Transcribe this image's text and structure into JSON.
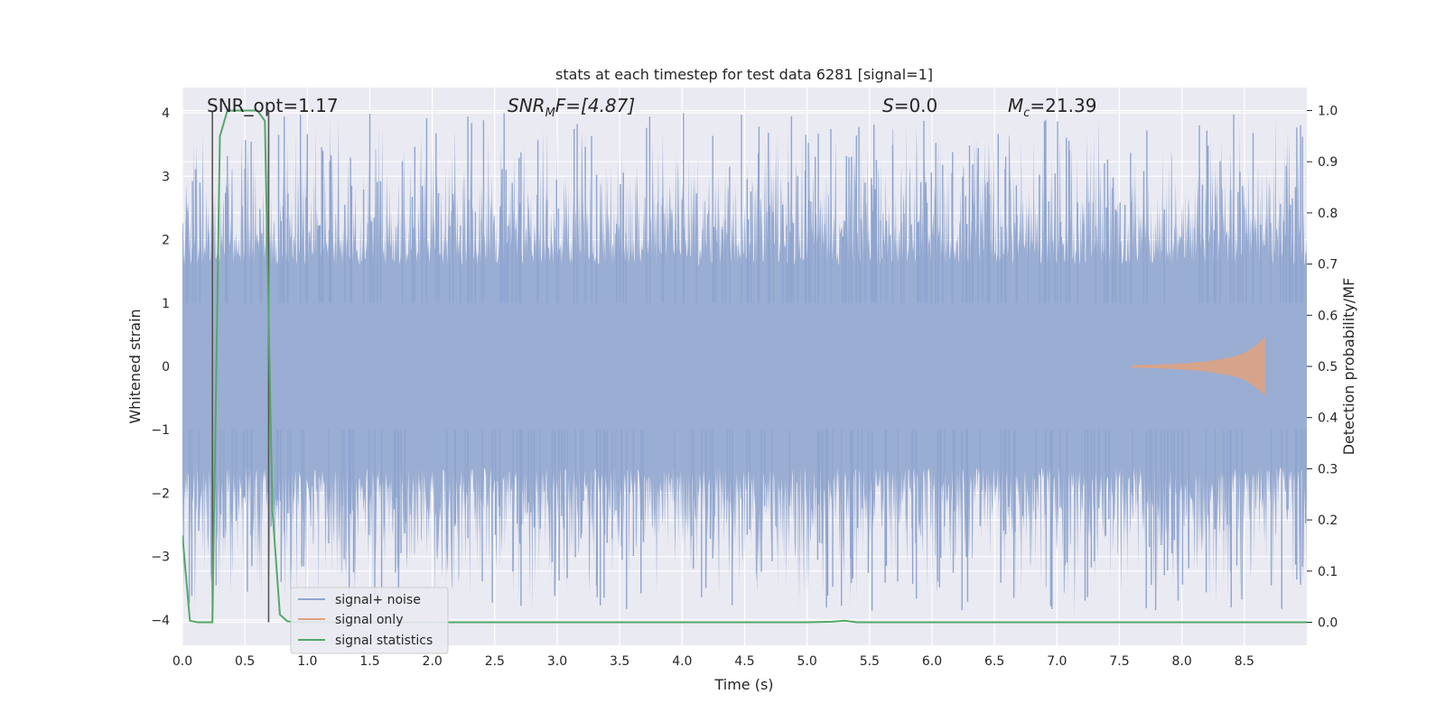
{
  "chart_data": {
    "type": "line",
    "title": "stats at each timestep for test data 6281 [signal=1]",
    "xlabel": "Time (s)",
    "ylabel_left": "Whitened strain",
    "ylabel_right": "Detection probability/MF",
    "xlim": [
      0.0,
      9.0
    ],
    "ylim_left": [
      -4.4,
      4.4
    ],
    "ylim_right": [
      -0.045,
      1.045
    ],
    "x_ticks": [
      "0.0",
      "0.5",
      "1.0",
      "1.5",
      "2.0",
      "2.5",
      "3.0",
      "3.5",
      "4.0",
      "4.5",
      "5.0",
      "5.5",
      "6.0",
      "6.5",
      "7.0",
      "7.5",
      "8.0",
      "8.5"
    ],
    "y_ticks_left": [
      "−4",
      "−3",
      "−2",
      "−1",
      "0",
      "1",
      "2",
      "3",
      "4"
    ],
    "y_ticks_right": [
      "0.0",
      "0.1",
      "0.2",
      "0.3",
      "0.4",
      "0.5",
      "0.6",
      "0.7",
      "0.8",
      "0.9",
      "1.0"
    ],
    "grid": true,
    "legend_position": "lower-left",
    "annotations": {
      "snr_opt": "SNR_opt=1.17",
      "snr_mf": "SNR",
      "snr_mf_sub": "M",
      "snr_mf_rest": "F=[4.87]",
      "s": "S",
      "s_rest": "=0.0",
      "mc": "M",
      "mc_sub": "c",
      "mc_rest": "=21.39"
    },
    "vertical_lines": [
      0.24,
      0.69
    ],
    "series": [
      {
        "name": "signal+ noise",
        "color": "#8fa5cf",
        "x_range": [
          0.0,
          9.0
        ],
        "band_envelope": 1.6,
        "approx_peak_range": [
          -4.0,
          4.0
        ]
      },
      {
        "name": "signal only",
        "color": "#e0a27f",
        "x": [
          7.6,
          7.8,
          8.0,
          8.2,
          8.4,
          8.5,
          8.6,
          8.66
        ],
        "amplitude": [
          0.01,
          0.02,
          0.04,
          0.07,
          0.14,
          0.2,
          0.33,
          0.45
        ]
      },
      {
        "name": "signal statistics",
        "color": "#55a868",
        "x": [
          0.0,
          0.06,
          0.12,
          0.18,
          0.24,
          0.3,
          0.36,
          0.42,
          0.48,
          0.54,
          0.6,
          0.66,
          0.72,
          0.78,
          0.84,
          0.9,
          1.2,
          2.0,
          3.0,
          4.0,
          5.0,
          5.2,
          5.3,
          5.4,
          6.0,
          7.0,
          8.0,
          9.0
        ],
        "y": [
          0.17,
          0.003,
          0.0,
          0.0,
          0.0,
          0.95,
          1.0,
          1.0,
          1.0,
          1.0,
          1.0,
          0.98,
          0.22,
          0.015,
          0.002,
          0.0,
          0.0,
          0.0,
          0.0,
          0.0,
          0.0,
          0.001,
          0.003,
          0.0,
          0.0,
          0.0,
          0.0,
          0.0
        ]
      }
    ]
  }
}
